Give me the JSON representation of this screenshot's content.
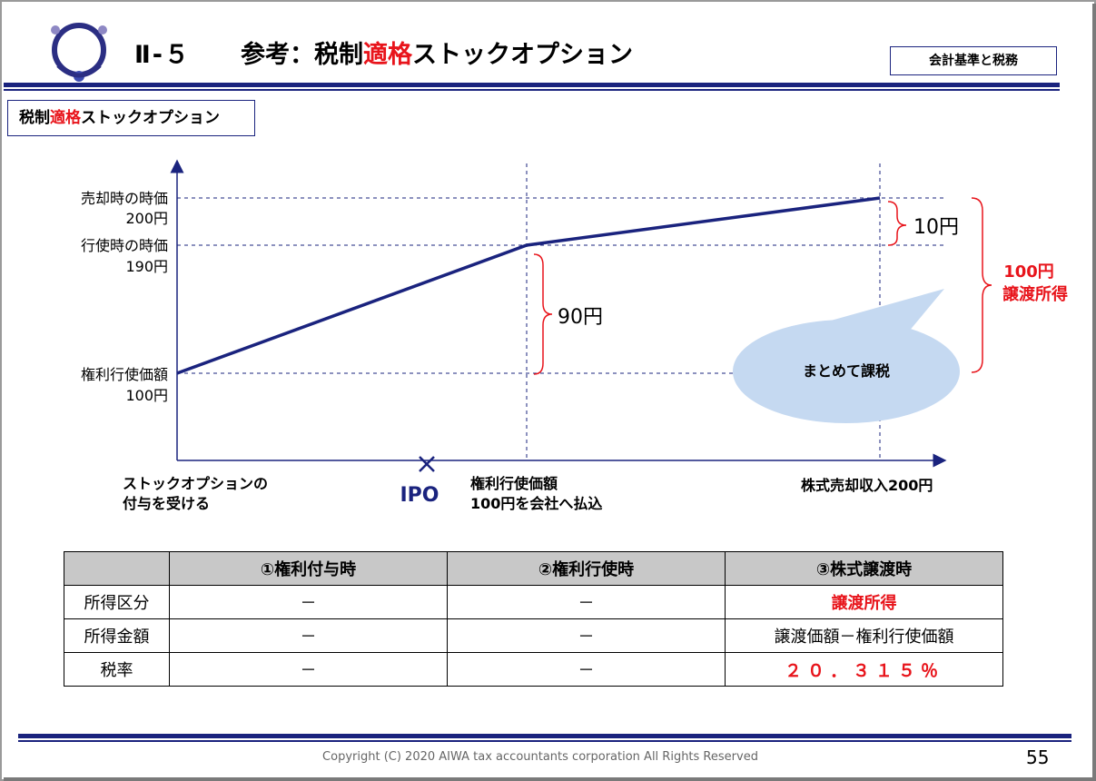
{
  "header": {
    "number_prefix": "Ⅱ-５",
    "title_before": "参考：税制",
    "title_highlight": "適格",
    "title_after": "ストックオプション",
    "tag": "会計基準と税務"
  },
  "section": {
    "before": "税制",
    "highlight": "適格",
    "after": "ストックオプション"
  },
  "diagram": {
    "y_labels": {
      "sale_price_label": "売却時の時価",
      "sale_price_value": "200円",
      "exercise_price_label": "行使時の時価",
      "exercise_price_value": "190円",
      "strike_label": "権利行使価額",
      "strike_value": "100円"
    },
    "x_labels": {
      "grant_line1": "ストックオプションの",
      "grant_line2": "付与を受ける",
      "ipo": "IPO",
      "exercise_line1": "権利行使価額",
      "exercise_line2": "100円を会社へ払込",
      "sale": "株式売却収入200円"
    },
    "brace_labels": {
      "gain_exercise": "90円",
      "gain_sale": "10円",
      "total_value": "100円",
      "total_label": "譲渡所得"
    },
    "bubble_text": "まとめて課税"
  },
  "table": {
    "headers": [
      "",
      "①権利付与時",
      "②権利行使時",
      "③株式譲渡時"
    ],
    "rows": [
      {
        "label": "所得区分",
        "c1": "－",
        "c2": "－",
        "c3": "譲渡所得"
      },
      {
        "label": "所得金額",
        "c1": "－",
        "c2": "－",
        "c3": "譲渡価額－権利行使価額"
      },
      {
        "label": "税率",
        "c1": "－",
        "c2": "－",
        "c3": "２０．３１５％"
      }
    ]
  },
  "footer": {
    "copyright": "Copyright (C) 2020 AIWA tax accountants corporation All Rights Reserved",
    "page": "55"
  },
  "colors": {
    "accent_navy": "#1a237e",
    "highlight_red": "#e8141b",
    "bubble_fill": "#c5d9f1"
  }
}
